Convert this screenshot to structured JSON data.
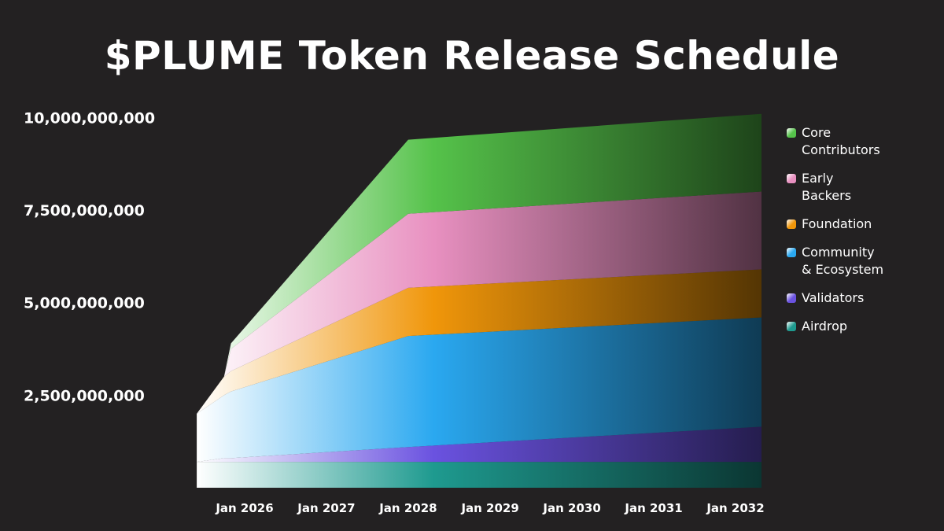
{
  "title": "$PLUME Token Release Schedule",
  "chart_data": {
    "type": "area",
    "stacked": true,
    "x": [
      "2025-06-01",
      "2025-10-01",
      "2025-11-01",
      "2028-01-01",
      "2032-01-01"
    ],
    "x_tick_labels": [
      "Jan 2026",
      "Jan 2027",
      "Jan 2028",
      "Jan 2029",
      "Jan 2030",
      "Jan 2031",
      "Jan 2032"
    ],
    "y_tick_labels": [
      "2,500,000,000",
      "5,000,000,000",
      "7,500,000,000",
      "10,000,000,000"
    ],
    "y_ticks": [
      2500000000,
      5000000000,
      7500000000,
      10000000000
    ],
    "ylim": [
      0,
      10200000000
    ],
    "series": [
      {
        "name": "Airdrop",
        "color": "#1e9a8f",
        "values": [
          700000000,
          700000000,
          700000000,
          700000000,
          700000000
        ]
      },
      {
        "name": "Validators",
        "color": "#6a52e0",
        "values": [
          0,
          100000000,
          100000000,
          400000000,
          950000000
        ]
      },
      {
        "name": "Community & Ecosystem",
        "color": "#2aa8f0",
        "values": [
          1300000000,
          1700000000,
          1800000000,
          3000000000,
          2950000000
        ]
      },
      {
        "name": "Foundation",
        "color": "#f0960a",
        "values": [
          0,
          500000000,
          550000000,
          1300000000,
          1300000000
        ]
      },
      {
        "name": "Early Backers",
        "color": "#e890c0",
        "values": [
          0,
          0,
          600000000,
          2000000000,
          2100000000
        ]
      },
      {
        "name": "Core Contributors",
        "color": "#55c24a",
        "values": [
          0,
          0,
          150000000,
          2000000000,
          2100000000
        ]
      }
    ],
    "legend_position": "right",
    "grid": false
  }
}
